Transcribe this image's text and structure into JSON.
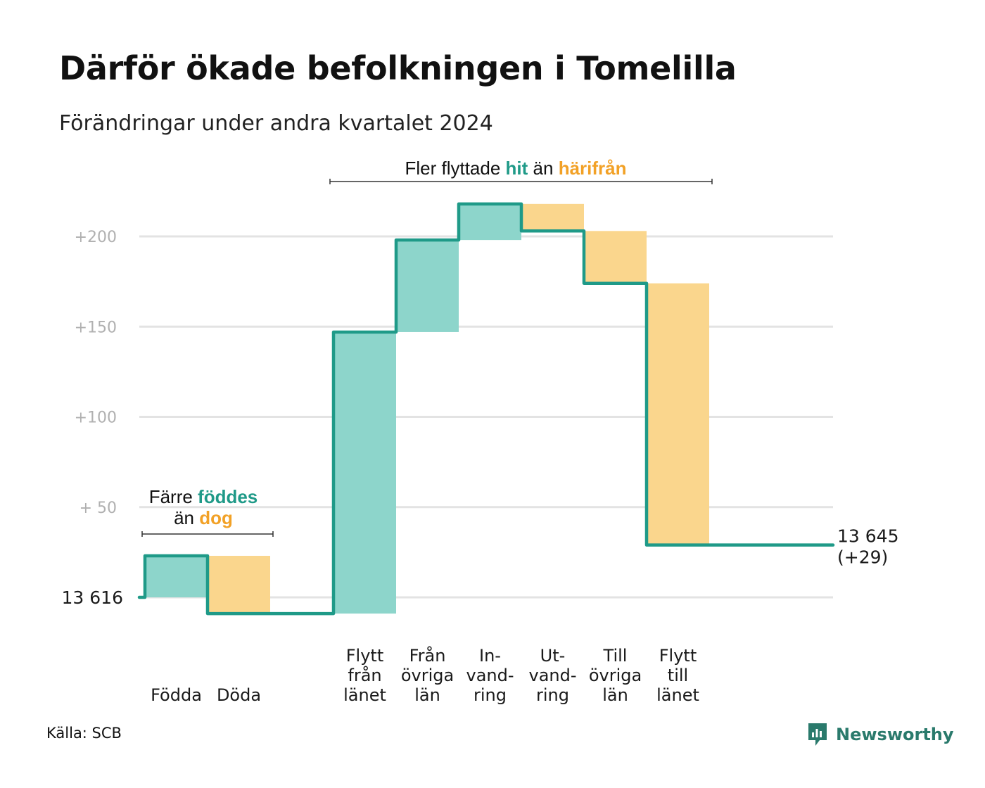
{
  "header": {
    "title": "Därför ökade befolkningen i Tomelilla",
    "subtitle": "Förändringar under andra kvartalet 2024"
  },
  "annotations": {
    "top": {
      "prefix": "Fler flyttade ",
      "in_word": "hit",
      "middle": " än ",
      "out_word": "härifrån"
    },
    "left": {
      "prefix": "Färre ",
      "in_word": "föddes",
      "line2_prefix": "än ",
      "out_word": "dog"
    }
  },
  "colors": {
    "increase_fill": "#8dd5cb",
    "decrease_fill": "#fad68d",
    "step_line": "#1f9a88",
    "increase_text": "#1f9a88",
    "decrease_text": "#f2a126",
    "grid": "#e3e3e3",
    "tick_text": "#b0b0b0"
  },
  "footer": {
    "source": "Källa: SCB",
    "brand": "Newsworthy",
    "brand_icon": "newsworthy-logo-icon"
  },
  "chart_data": {
    "type": "waterfall",
    "title": "Därför ökade befolkningen i Tomelilla",
    "subtitle": "Förändringar under andra kvartalet 2024",
    "xlabel": "",
    "ylabel": "",
    "base_value": 13616,
    "base_label": "13  616",
    "ylim": [
      -10,
      220
    ],
    "yticks": [
      {
        "value": 200,
        "label": "+200"
      },
      {
        "value": 150,
        "label": "+150"
      },
      {
        "value": 100,
        "label": "+100"
      },
      {
        "value": 50,
        "label": "+  50"
      }
    ],
    "grid": true,
    "steps": [
      {
        "category": "Födda",
        "label_lines": [
          "Födda"
        ],
        "change": 23,
        "start": 0,
        "end": 23
      },
      {
        "category": "Döda",
        "label_lines": [
          "Döda"
        ],
        "change": -32,
        "start": 23,
        "end": -9
      },
      {
        "category": "Flytt från länet",
        "label_lines": [
          "Flytt",
          "från",
          "länet"
        ],
        "change": 156,
        "start": -9,
        "end": 147
      },
      {
        "category": "Från övriga län",
        "label_lines": [
          "Från",
          "övriga",
          "län"
        ],
        "change": 51,
        "start": 147,
        "end": 198
      },
      {
        "category": "In-vandring",
        "label_lines": [
          "In-",
          "vand-",
          "ring"
        ],
        "change": 20,
        "start": 198,
        "end": 218
      },
      {
        "category": "Ut-vandring",
        "label_lines": [
          "Ut-",
          "vand-",
          "ring"
        ],
        "change": -15,
        "start": 218,
        "end": 203
      },
      {
        "category": "Till övriga län",
        "label_lines": [
          "Till",
          "övriga",
          "län"
        ],
        "change": -29,
        "start": 203,
        "end": 174
      },
      {
        "category": "Flytt till länet",
        "label_lines": [
          "Flytt",
          "till",
          "länet"
        ],
        "change": -145,
        "start": 174,
        "end": 29
      }
    ],
    "final": {
      "value": 13645,
      "change": 29,
      "label_line1": "13 645",
      "label_line2": "(+29)"
    }
  }
}
